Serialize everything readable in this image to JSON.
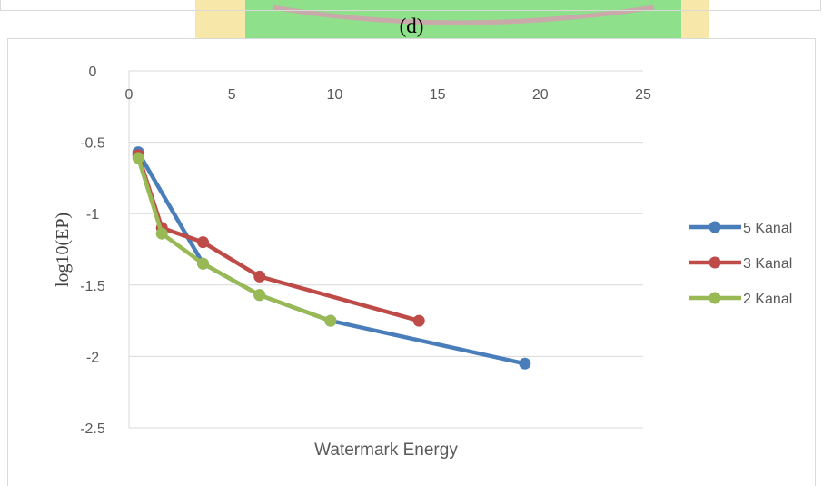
{
  "panel_label": "(d)",
  "chart_data": {
    "type": "line",
    "xlabel": "Watermark Energy",
    "ylabel": "log10(EP)",
    "xlim": [
      0,
      25
    ],
    "ylim": [
      -2.5,
      0
    ],
    "x_ticks": [
      "0",
      "5",
      "10",
      "15",
      "20",
      "25"
    ],
    "y_ticks": [
      "0",
      "-0.5",
      "-1",
      "-1.5",
      "-2",
      "-2.5"
    ],
    "grid": "horizontal",
    "legend_position": "right",
    "series": [
      {
        "name": "5 Kanal",
        "color": "#4a7ebb",
        "x": [
          0.45,
          3.6,
          6.35,
          9.8,
          19.25
        ],
        "y": [
          -0.57,
          -1.35,
          -1.57,
          -1.75,
          -2.05
        ]
      },
      {
        "name": "3 Kanal",
        "color": "#be4b48",
        "x": [
          0.45,
          1.6,
          3.6,
          6.35,
          14.1
        ],
        "y": [
          -0.59,
          -1.1,
          -1.2,
          -1.44,
          -1.75
        ]
      },
      {
        "name": "2 Kanal",
        "color": "#98b954",
        "x": [
          0.45,
          1.6,
          3.6,
          6.35,
          9.8
        ],
        "y": [
          -0.61,
          -1.14,
          -1.35,
          -1.57,
          -1.75
        ]
      }
    ]
  }
}
